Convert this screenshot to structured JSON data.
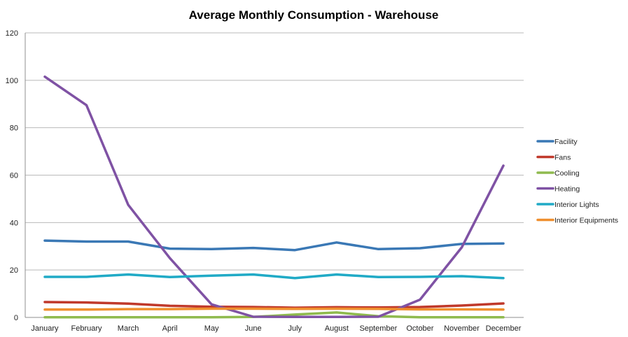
{
  "chart_data": {
    "type": "line",
    "title": "Average Monthly Consumption - Warehouse",
    "xlabel": "",
    "ylabel": "",
    "ylim": [
      0,
      120
    ],
    "yticks": [
      "0",
      "20",
      "40",
      "60",
      "80",
      "100",
      "120"
    ],
    "grid": true,
    "legend_position": "right",
    "categories": [
      "January",
      "February",
      "March",
      "April",
      "May",
      "June",
      "July",
      "August",
      "September",
      "October",
      "November",
      "December"
    ],
    "series": [
      {
        "name": "Facility",
        "color": "#3a78b5",
        "values": [
          32.4,
          32.0,
          32.0,
          29.0,
          28.8,
          29.3,
          28.4,
          31.6,
          28.8,
          29.2,
          31.0,
          31.2
        ]
      },
      {
        "name": "Fans",
        "color": "#c0392b",
        "values": [
          6.5,
          6.3,
          5.8,
          4.9,
          4.5,
          4.4,
          4.1,
          4.3,
          4.2,
          4.4,
          5.0,
          5.9
        ]
      },
      {
        "name": "Cooling",
        "color": "#8fba4e",
        "values": [
          0.1,
          0.1,
          0.1,
          0.1,
          0.1,
          0.2,
          1.2,
          2.1,
          0.5,
          0.1,
          0.1,
          0.1
        ]
      },
      {
        "name": "Heating",
        "color": "#7f52a4",
        "values": [
          101.5,
          89.5,
          47.5,
          25.0,
          5.5,
          0.3,
          0.2,
          0.2,
          0.3,
          7.5,
          29.5,
          64.0
        ]
      },
      {
        "name": "Interior Lights",
        "color": "#20aac6",
        "values": [
          17.1,
          17.1,
          18.1,
          17.0,
          17.6,
          18.1,
          16.6,
          18.1,
          17.0,
          17.1,
          17.4,
          16.6
        ]
      },
      {
        "name": "Interior Equipments",
        "color": "#ef8f2e",
        "values": [
          3.3,
          3.3,
          3.5,
          3.5,
          3.7,
          3.7,
          3.6,
          3.7,
          3.6,
          3.4,
          3.4,
          3.3
        ]
      }
    ]
  }
}
